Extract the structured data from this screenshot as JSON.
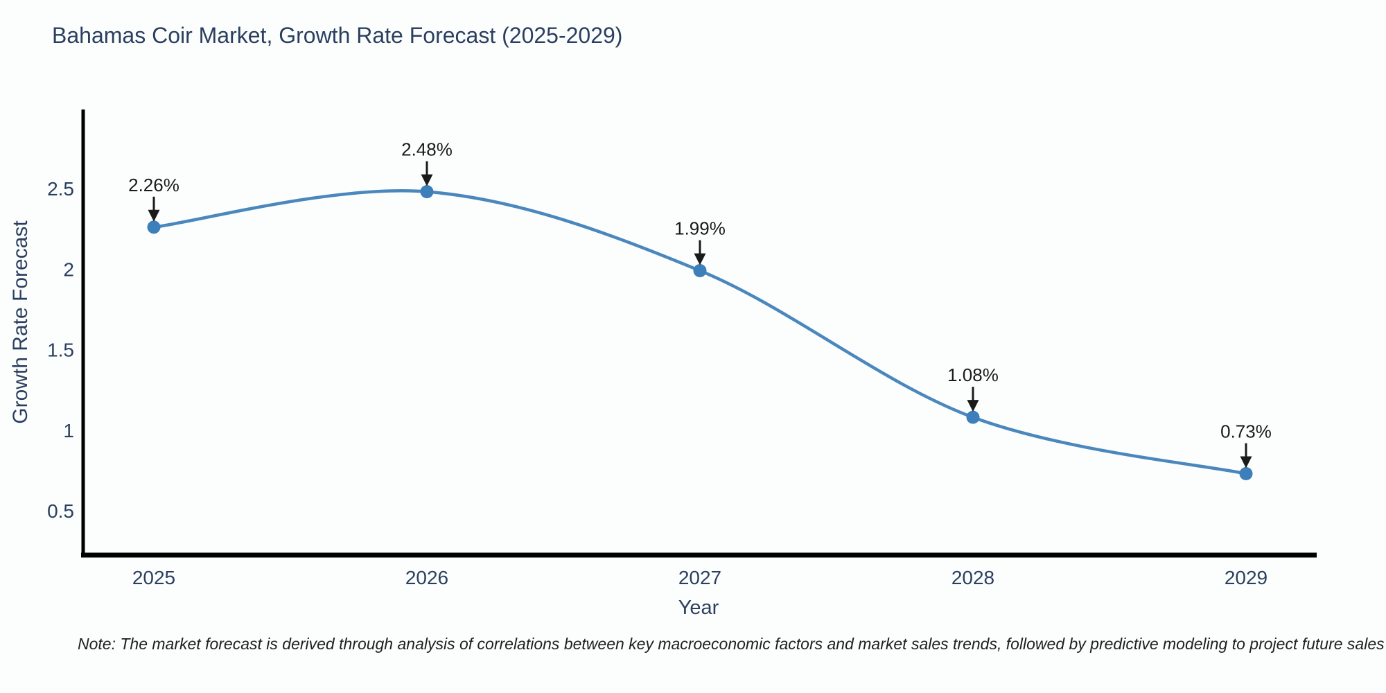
{
  "figure": {
    "title": "Bahamas Coir Market, Growth Rate Forecast (2025-2029)",
    "note": "Note: The market forecast is derived through analysis of correlations between key macroeconomic factors and market sales trends, followed by predictive modeling to project future sales"
  },
  "chart_data": {
    "type": "line",
    "line_shape": "spline",
    "title": "Bahamas Coir Market, Growth Rate Forecast (2025-2029)",
    "xlabel": "Year",
    "ylabel": "Growth Rate Forecast",
    "x": [
      "2025",
      "2026",
      "2027",
      "2028",
      "2029"
    ],
    "values": [
      2.26,
      2.48,
      1.99,
      1.08,
      0.73
    ],
    "point_labels": [
      "2.26%",
      "2.48%",
      "1.99%",
      "1.08%",
      "0.73%"
    ],
    "ytick_labels": [
      "2.5",
      "2",
      "1.5",
      "1",
      "0.5"
    ],
    "ytick_values": [
      2.5,
      2,
      1.5,
      1,
      0.5
    ],
    "ylim": [
      0.22,
      2.99
    ],
    "grid": false,
    "legend": "none",
    "annotation_style": "arrow-down-to-point",
    "colors": {
      "line": "#4a87bd",
      "marker": "#3c7fba",
      "axis": "#000000",
      "tick_text": "#2a3f5f",
      "annotation_text": "#1a1a1a",
      "background": "#fcfdfd"
    }
  }
}
